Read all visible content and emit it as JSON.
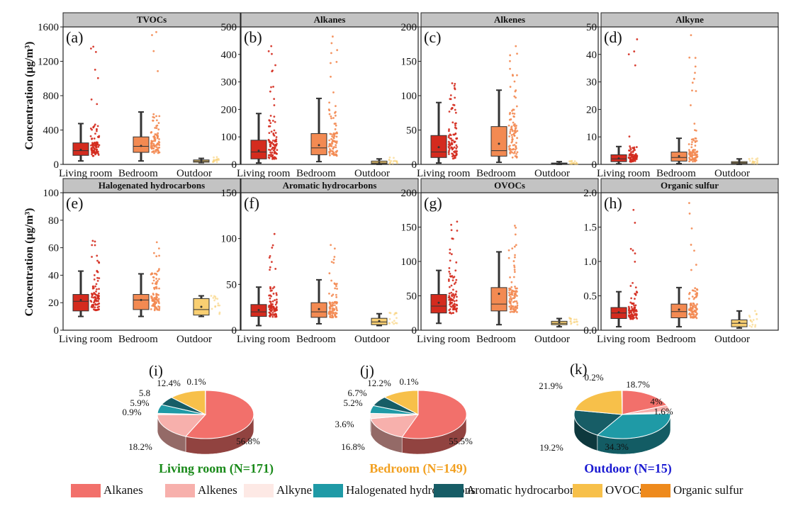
{
  "ylabel": "Concentration (μg/m³)",
  "group_labels": [
    "Living room",
    "Bedroom",
    "Outdoor"
  ],
  "group_colors": [
    "#d42b1e",
    "#f38a52",
    "#f9cf72"
  ],
  "category_colors": {
    "Alkanes": "#f2706b",
    "Alkenes": "#f7b0ac",
    "Alkyne": "#fde9e5",
    "Halogenated hydrocarbons": "#1f9aa6",
    "Aromatic hydrocarbons": "#175d66",
    "OVOCs": "#f7c04a",
    "Organic sulfur": "#ee8a1d"
  },
  "legend": [
    "Alkanes",
    "Alkenes",
    "Alkyne",
    "Halogenated hydrocarbons",
    "Aromatic hydrocarbons",
    "OVOCs",
    "Organic sulfur"
  ],
  "chart_data": [
    {
      "type": "box",
      "panel": "(a)",
      "title": "TVOCs",
      "ylim": [
        0,
        1600
      ],
      "yticks": [
        0,
        400,
        800,
        1200,
        1600
      ],
      "boxes": [
        {
          "group": "Living room",
          "whisker_low": 40,
          "q1": 105,
          "median": 160,
          "q3": 250,
          "whisker_high": 475,
          "mean": 170,
          "max_point": 1370
        },
        {
          "group": "Bedroom",
          "whisker_low": 40,
          "q1": 140,
          "median": 210,
          "q3": 320,
          "whisker_high": 610,
          "mean": 215,
          "max_point": 1540
        },
        {
          "group": "Outdoor",
          "whisker_low": 20,
          "q1": 25,
          "median": 38,
          "q3": 52,
          "whisker_high": 70,
          "mean": 40,
          "max_point": 85
        }
      ]
    },
    {
      "type": "box",
      "panel": "(b)",
      "title": "Alkanes",
      "ylim": [
        0,
        500
      ],
      "yticks": [
        0,
        100,
        200,
        300,
        400,
        500
      ],
      "boxes": [
        {
          "group": "Living room",
          "whisker_low": 5,
          "q1": 20,
          "median": 45,
          "q3": 88,
          "whisker_high": 185,
          "mean": 50,
          "max_point": 430
        },
        {
          "group": "Bedroom",
          "whisker_low": 10,
          "q1": 35,
          "median": 60,
          "q3": 112,
          "whisker_high": 240,
          "mean": 70,
          "max_point": 465
        },
        {
          "group": "Outdoor",
          "whisker_low": 0,
          "q1": 2,
          "median": 5,
          "q3": 12,
          "whisker_high": 20,
          "mean": 6,
          "max_point": 25
        }
      ]
    },
    {
      "type": "box",
      "panel": "(c)",
      "title": "Alkenes",
      "ylim": [
        0,
        200
      ],
      "yticks": [
        0,
        50,
        100,
        150,
        200
      ],
      "boxes": [
        {
          "group": "Living room",
          "whisker_low": 2,
          "q1": 10,
          "median": 18,
          "q3": 42,
          "whisker_high": 90,
          "mean": 25,
          "max_point": 118
        },
        {
          "group": "Bedroom",
          "whisker_low": 3,
          "q1": 12,
          "median": 20,
          "q3": 55,
          "whisker_high": 108,
          "mean": 30,
          "max_point": 172
        },
        {
          "group": "Outdoor",
          "whisker_low": 0,
          "q1": 0.5,
          "median": 1,
          "q3": 2,
          "whisker_high": 4,
          "mean": 1.2,
          "max_point": 5
        }
      ]
    },
    {
      "type": "box",
      "panel": "(d)",
      "title": "Alkyne",
      "ylim": [
        0,
        50
      ],
      "yticks": [
        0,
        10,
        20,
        30,
        40,
        50
      ],
      "boxes": [
        {
          "group": "Living room",
          "whisker_low": 0.2,
          "q1": 1,
          "median": 2,
          "q3": 3.5,
          "whisker_high": 6.5,
          "mean": 2.2,
          "max_point": 45.5
        },
        {
          "group": "Bedroom",
          "whisker_low": 0.3,
          "q1": 1.2,
          "median": 2.5,
          "q3": 4.5,
          "whisker_high": 9.5,
          "mean": 3,
          "max_point": 47
        },
        {
          "group": "Outdoor",
          "whisker_low": 0,
          "q1": 0.3,
          "median": 0.6,
          "q3": 1,
          "whisker_high": 2,
          "mean": 0.6,
          "max_point": 2.2
        }
      ]
    },
    {
      "type": "box",
      "panel": "(e)",
      "title": "Halogenated hydrocarbons",
      "ylim": [
        0,
        100
      ],
      "yticks": [
        0,
        20,
        40,
        60,
        80,
        100
      ],
      "boxes": [
        {
          "group": "Living room",
          "whisker_low": 10,
          "q1": 14,
          "median": 21,
          "q3": 26,
          "whisker_high": 43,
          "mean": 22,
          "max_point": 65
        },
        {
          "group": "Bedroom",
          "whisker_low": 10,
          "q1": 15,
          "median": 22,
          "q3": 26,
          "whisker_high": 41,
          "mean": 22,
          "max_point": 64
        },
        {
          "group": "Outdoor",
          "whisker_low": 10,
          "q1": 11,
          "median": 15,
          "q3": 23,
          "whisker_high": 25,
          "mean": 17,
          "max_point": 25
        }
      ]
    },
    {
      "type": "box",
      "panel": "(f)",
      "title": "Aromatic hydrocarbons",
      "ylim": [
        0,
        150
      ],
      "yticks": [
        0,
        50,
        100,
        150
      ],
      "boxes": [
        {
          "group": "Living room",
          "whisker_low": 5,
          "q1": 15,
          "median": 20,
          "q3": 28,
          "whisker_high": 47,
          "mean": 22,
          "max_point": 105
        },
        {
          "group": "Bedroom",
          "whisker_low": 7,
          "q1": 14,
          "median": 20,
          "q3": 30,
          "whisker_high": 55,
          "mean": 23,
          "max_point": 93
        },
        {
          "group": "Outdoor",
          "whisker_low": 5,
          "q1": 6,
          "median": 9,
          "q3": 13,
          "whisker_high": 18,
          "mean": 10,
          "max_point": 19
        }
      ]
    },
    {
      "type": "box",
      "panel": "(g)",
      "title": "OVOCs",
      "ylim": [
        0,
        200
      ],
      "yticks": [
        0,
        50,
        100,
        150,
        200
      ],
      "boxes": [
        {
          "group": "Living room",
          "whisker_low": 10,
          "q1": 25,
          "median": 35,
          "q3": 52,
          "whisker_high": 87,
          "mean": 40,
          "max_point": 158
        },
        {
          "group": "Bedroom",
          "whisker_low": 8,
          "q1": 28,
          "median": 38,
          "q3": 62,
          "whisker_high": 114,
          "mean": 53,
          "max_point": 152
        },
        {
          "group": "Outdoor",
          "whisker_low": 5,
          "q1": 8,
          "median": 10,
          "q3": 13,
          "whisker_high": 17,
          "mean": 11,
          "max_point": 18
        }
      ]
    },
    {
      "type": "box",
      "panel": "(h)",
      "title": "Organic sulfur",
      "ylim": [
        0,
        2.0
      ],
      "yticks": [
        0.0,
        0.5,
        1.0,
        1.5,
        2.0
      ],
      "boxes": [
        {
          "group": "Living room",
          "whisker_low": 0.05,
          "q1": 0.17,
          "median": 0.25,
          "q3": 0.33,
          "whisker_high": 0.56,
          "mean": 0.26,
          "max_point": 1.75
        },
        {
          "group": "Bedroom",
          "whisker_low": 0.05,
          "q1": 0.18,
          "median": 0.27,
          "q3": 0.38,
          "whisker_high": 0.62,
          "mean": 0.3,
          "max_point": 1.85
        },
        {
          "group": "Outdoor",
          "whisker_low": 0.03,
          "q1": 0.05,
          "median": 0.1,
          "q3": 0.15,
          "whisker_high": 0.28,
          "mean": 0.11,
          "max_point": 0.28
        }
      ]
    },
    {
      "type": "pie",
      "panel": "(i)",
      "label": "Living room (N=171)",
      "label_color": "#1a8a1a",
      "slices": [
        {
          "name": "Alkanes",
          "value": 56.8,
          "text": "56.8%"
        },
        {
          "name": "Alkenes",
          "value": 18.2,
          "text": "18.2%"
        },
        {
          "name": "Alkyne",
          "value": 0.9,
          "text": "0.9%"
        },
        {
          "name": "Halogenated hydrocarbons",
          "value": 5.9,
          "text": "5.9%"
        },
        {
          "name": "Aromatic hydrocarbons",
          "value": 5.8,
          "text": "5.8"
        },
        {
          "name": "OVOCs",
          "value": 12.4,
          "text": "12.4%"
        },
        {
          "name": "Organic sulfur",
          "value": 0.1,
          "text": "0.1%"
        }
      ]
    },
    {
      "type": "pie",
      "panel": "(j)",
      "label": "Bedroom (N=149)",
      "label_color": "#f2a020",
      "slices": [
        {
          "name": "Alkanes",
          "value": 55.5,
          "text": "55.5%"
        },
        {
          "name": "Alkenes",
          "value": 16.8,
          "text": "16.8%"
        },
        {
          "name": "Alkyne",
          "value": 3.6,
          "text": "3.6%"
        },
        {
          "name": "Halogenated hydrocarbons",
          "value": 5.2,
          "text": "5.2%"
        },
        {
          "name": "Aromatic hydrocarbons",
          "value": 6.7,
          "text": "6.7%"
        },
        {
          "name": "OVOCs",
          "value": 12.2,
          "text": "12.2%"
        },
        {
          "name": "Organic sulfur",
          "value": 0.1,
          "text": "0.1%"
        }
      ]
    },
    {
      "type": "pie",
      "panel": "(k)",
      "label": "Outdoor (N=15)",
      "label_color": "#1a1ad2",
      "slices": [
        {
          "name": "Alkanes",
          "value": 18.7,
          "text": "18.7%"
        },
        {
          "name": "Alkenes",
          "value": 4,
          "text": "4%"
        },
        {
          "name": "Alkyne",
          "value": 1.6,
          "text": "1.6%"
        },
        {
          "name": "Halogenated hydrocarbons",
          "value": 34.3,
          "text": "34.3%"
        },
        {
          "name": "Aromatic hydrocarbons",
          "value": 19.2,
          "text": "19.2%"
        },
        {
          "name": "OVOCs",
          "value": 21.9,
          "text": "21.9%"
        },
        {
          "name": "Organic sulfur",
          "value": 0.2,
          "text": "0.2%"
        }
      ]
    }
  ]
}
